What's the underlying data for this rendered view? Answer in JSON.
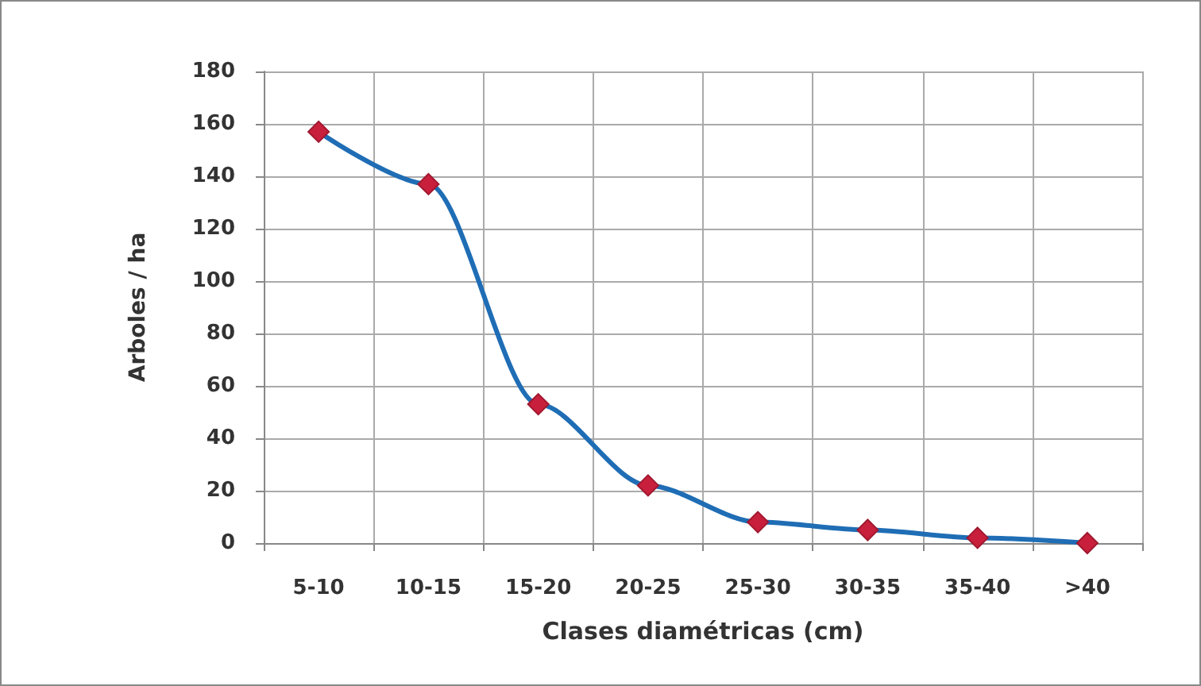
{
  "chart_data": {
    "type": "line",
    "xlabel": "Clases diamétricas (cm)",
    "ylabel": "Arboles / ha",
    "categories": [
      "5-10",
      "10-15",
      "15-20",
      "20-25",
      "25-30",
      "30-35",
      "35-40",
      ">40"
    ],
    "series": [
      {
        "color": "#1f6db5",
        "values": [
          157,
          137,
          53,
          22,
          8,
          5,
          2,
          0
        ]
      }
    ],
    "ylim": [
      0,
      180
    ],
    "yticks": [
      0,
      20,
      40,
      60,
      80,
      100,
      120,
      140,
      160,
      180
    ],
    "grid": true,
    "marker": "diamond",
    "line_style": "solid"
  }
}
